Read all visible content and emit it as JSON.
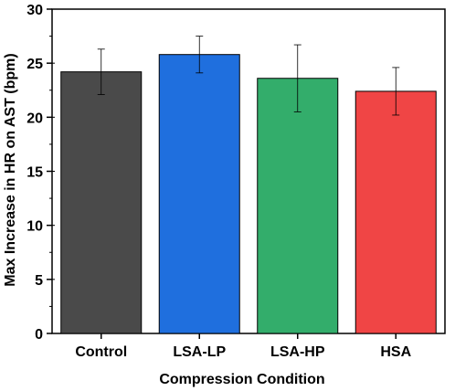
{
  "chart_data": {
    "type": "bar",
    "xlabel": "Compression Condition",
    "ylabel": "Max Increase in HR on AST (bpm)",
    "ylim": [
      0,
      30
    ],
    "yticks": [
      "0",
      "5",
      "10",
      "15",
      "20",
      "25",
      "30"
    ],
    "categories": [
      "Control",
      "LSA-LP",
      "LSA-HP",
      "HSA"
    ],
    "values": [
      24.2,
      25.8,
      23.6,
      22.4
    ],
    "errors": [
      2.1,
      1.7,
      3.1,
      2.2
    ],
    "colors": [
      "#4a4a4a",
      "#1f6fde",
      "#33ad6b",
      "#f04545"
    ],
    "grid": false,
    "legend": "none"
  }
}
